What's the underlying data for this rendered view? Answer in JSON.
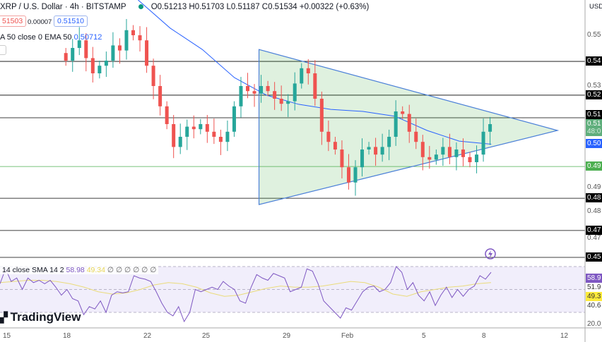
{
  "header": {
    "symbol": "XRP / U.S. Dollar · 4h · BITSTAMP",
    "ohlc": "O0.51213 H0.51703 L0.51187 C0.51534 +0.00322 (+0.63%)",
    "sell": "51503",
    "spread": "0.00007",
    "buy": "0.51510",
    "ema_label": "A 50 close 0 EMA 50",
    "ema_value": "0.50712",
    "currency": "USD"
  },
  "rsi_header": {
    "label": "14 close SMA 14 2",
    "rsi": "58.98",
    "sma": "49.34",
    "extra": "∅ ∅ ∅ ∅ ∅ ∅"
  },
  "logo": "TradingView",
  "price_labels": [
    {
      "text": "0.55",
      "bg": "",
      "fg": "#555"
    },
    {
      "text": "0.54",
      "bg": "#000",
      "fg": "#fff"
    },
    {
      "text": "0.53",
      "bg": "",
      "fg": "#555"
    },
    {
      "text": "0.52",
      "bg": "#000",
      "fg": "#fff"
    },
    {
      "text": "0.51",
      "bg": "#000",
      "fg": "#fff"
    },
    {
      "text": "0.51",
      "bg": "#5fae7c",
      "fg": "#fff"
    },
    {
      "text": "48:0",
      "bg": "#5fae7c",
      "fg": "#d9efe0"
    },
    {
      "text": "0.50",
      "bg": "#2962ff",
      "fg": "#fff"
    },
    {
      "text": "0.49",
      "bg": "#4caf50",
      "fg": "#fff"
    },
    {
      "text": "0.49",
      "bg": "",
      "fg": "#555"
    },
    {
      "text": "0.48",
      "bg": "#000",
      "fg": "#fff"
    },
    {
      "text": "0.48",
      "bg": "",
      "fg": "#555"
    },
    {
      "text": "0.47",
      "bg": "#000",
      "fg": "#fff"
    },
    {
      "text": "0.47",
      "bg": "",
      "fg": "#555"
    },
    {
      "text": "0.45",
      "bg": "#000",
      "fg": "#fff"
    },
    {
      "text": "58.9",
      "bg": "#7e57c2",
      "fg": "#fff"
    },
    {
      "text": "51.9",
      "bg": "",
      "fg": "#333"
    },
    {
      "text": "49.3",
      "bg": "#ffeb3b",
      "fg": "#333"
    },
    {
      "text": "40.6",
      "bg": "",
      "fg": "#333"
    },
    {
      "text": "20.0",
      "bg": "",
      "fg": "#555"
    }
  ],
  "date_labels": [
    "15",
    "18",
    "22",
    "25",
    "29",
    "Feb",
    "5",
    "8",
    "12"
  ],
  "chart_data": {
    "type": "candlestick",
    "x_range": [
      "Jan 18",
      "Feb 8"
    ],
    "closes": [
      0.54,
      0.545,
      0.548,
      0.541,
      0.535,
      0.538,
      0.54,
      0.546,
      0.544,
      0.552,
      0.55,
      0.548,
      0.538,
      0.53,
      0.522,
      0.515,
      0.506,
      0.51,
      0.514,
      0.513,
      0.515,
      0.512,
      0.51,
      0.508,
      0.512,
      0.522,
      0.53,
      0.528,
      0.527,
      0.53,
      0.528,
      0.525,
      0.523,
      0.524,
      0.531,
      0.537,
      0.535,
      0.525,
      0.512,
      0.508,
      0.505,
      0.498,
      0.492,
      0.498,
      0.505,
      0.506,
      0.503,
      0.506,
      0.51,
      0.52,
      0.519,
      0.512,
      0.508,
      0.502,
      0.501,
      0.503,
      0.506,
      0.502,
      0.505,
      0.502,
      0.5,
      0.503,
      0.512,
      0.515
    ],
    "ema50": {
      "name": "EMA 50",
      "values": [
        0.5639,
        0.5528,
        0.5444,
        0.5333,
        0.5264,
        0.5228,
        0.5208,
        0.52,
        0.5181,
        0.5125,
        0.5083,
        0.5071
      ],
      "color": "#2962ff"
    },
    "horizontal_levels": [
      {
        "price": 0.5397,
        "color": "#000"
      },
      {
        "price": 0.5264,
        "color": "#000"
      },
      {
        "price": 0.5175,
        "color": "#000"
      },
      {
        "price": 0.4983,
        "color": "#4caf50"
      },
      {
        "price": 0.4858,
        "color": "#000"
      },
      {
        "price": 0.4731,
        "color": "#000"
      },
      {
        "price": 0.4625,
        "color": "#000"
      }
    ],
    "triangle": [
      {
        "date": "Jan 27 15:00",
        "price": 0.5444
      },
      {
        "date": "Feb 11 12:00",
        "price": 0.5125
      },
      {
        "date": "Jan 27 15:00",
        "price": 0.4833
      }
    ],
    "rsi": {
      "values": [
        55,
        68,
        57,
        60,
        50,
        60,
        56,
        58,
        55,
        58,
        52,
        45,
        50,
        42,
        40,
        28,
        35,
        33,
        40,
        30,
        45,
        48,
        47,
        48,
        62,
        60,
        59,
        57,
        48,
        38,
        30,
        27,
        35,
        22,
        30,
        50,
        48,
        50,
        52,
        50,
        57,
        53,
        50,
        40,
        38,
        52,
        63,
        60,
        58,
        64,
        62,
        60,
        48,
        50,
        52,
        68,
        66,
        55,
        40,
        35,
        30,
        25,
        34,
        32,
        40,
        48,
        52,
        53,
        48,
        50,
        56,
        70,
        65,
        50,
        56,
        45,
        40,
        48,
        36,
        45,
        52,
        43,
        50,
        44,
        50,
        53,
        62,
        59,
        65
      ],
      "sma": [
        56,
        57,
        58,
        58,
        57,
        55,
        52,
        48,
        46,
        47,
        50,
        54,
        56,
        55,
        52,
        47,
        44,
        45,
        48,
        51,
        53,
        52,
        52,
        53,
        55,
        57,
        56,
        52,
        46,
        44,
        48,
        50,
        52,
        53,
        55,
        56
      ],
      "ylim": [
        0,
        100
      ],
      "bands": [
        70,
        50,
        30
      ]
    },
    "up_color": "#26a69a",
    "down_color": "#ef5350"
  }
}
